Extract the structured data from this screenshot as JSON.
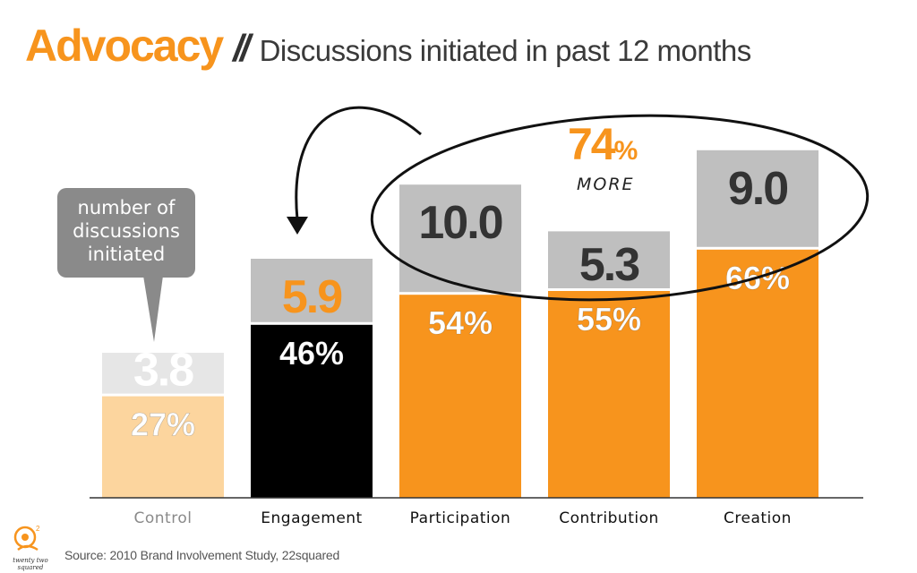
{
  "title": {
    "brand": "Advocacy",
    "separator": "//",
    "subtitle": "Discussions initiated in past 12 months"
  },
  "callout": {
    "lines": [
      "number of",
      "discussions",
      "initiated"
    ]
  },
  "annotation": {
    "value": "74",
    "unit": "%",
    "word": "MORE"
  },
  "source": "Source: 2010 Brand Involvement Study, 22squared",
  "logo_text": "twenty two squared",
  "colors": {
    "orange": "#f7941d",
    "light_orange": "#fcd59e",
    "black": "#000000",
    "gray_box": "#bfbfbf",
    "light_gray_box": "#e6e6e6",
    "callout": "#8a8a8a"
  },
  "chart_data": {
    "type": "bar",
    "categories": [
      "Control",
      "Engagement",
      "Participation",
      "Contribution",
      "Creation"
    ],
    "series": [
      {
        "name": "percent",
        "values": [
          27,
          46,
          54,
          55,
          66
        ]
      },
      {
        "name": "number of discussions initiated",
        "values": [
          3.8,
          5.9,
          10.0,
          5.3,
          9.0
        ]
      }
    ],
    "percent_labels": [
      "27%",
      "46%",
      "54%",
      "55%",
      "66%"
    ],
    "discussion_labels": [
      "3.8",
      "5.9",
      "10.0",
      "5.3",
      "9.0"
    ],
    "bar_colors": [
      "#fcd59e",
      "#000000",
      "#f7941d",
      "#f7941d",
      "#f7941d"
    ],
    "box_colors": [
      "#e6e6e6",
      "#bfbfbf",
      "#bfbfbf",
      "#bfbfbf",
      "#bfbfbf"
    ],
    "discussion_label_colors": [
      "#ffffff",
      "#f7941d",
      "#333333",
      "#333333",
      "#333333"
    ],
    "ylim": [
      0,
      100
    ],
    "grid": false,
    "legend": "none"
  }
}
